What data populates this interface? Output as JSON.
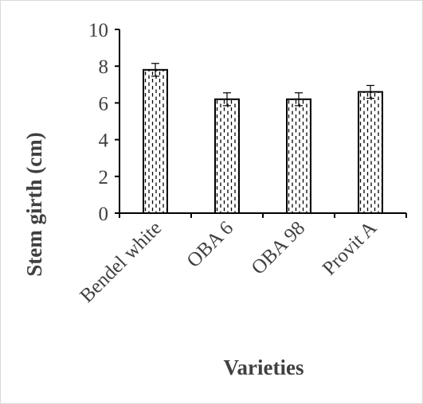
{
  "chart_data": {
    "type": "bar",
    "title": "",
    "xlabel": "Varieties",
    "ylabel": "Stem girth (cm)",
    "categories": [
      "Bendel white",
      "OBA 6",
      "OBA 98",
      "Provit A"
    ],
    "values": [
      7.8,
      6.2,
      6.2,
      6.6
    ],
    "error": [
      0.35,
      0.35,
      0.35,
      0.35
    ],
    "ylim": [
      0,
      10
    ],
    "yticks": [
      "0",
      "2",
      "4",
      "6",
      "8",
      "10"
    ],
    "grid": false,
    "legend": "none",
    "bar_fill": "dotted-dashed vertical pattern",
    "colors": {
      "bar_edge": "#000000",
      "pattern": "#000000",
      "axis": "#000000",
      "text": "#404040"
    }
  }
}
